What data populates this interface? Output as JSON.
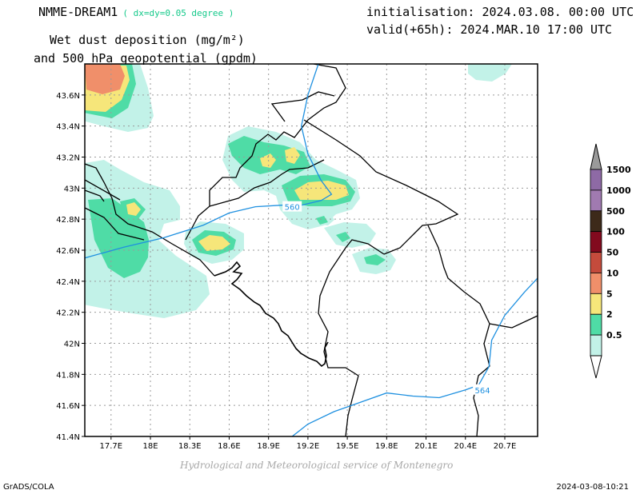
{
  "header": {
    "model": "NMME-DREAM1",
    "resolution": "( dx=dy=0.05 degree )",
    "product_line1": "Wet dust deposition (mg/m²)",
    "product_line2": "and 500 hPa geopotential (gpdm)",
    "init": "initialisation: 2024.03.08. 00:00 UTC",
    "valid": "valid(+65h): 2024.MAR.10 17:00 UTC"
  },
  "footer": {
    "credit": "Hydrological and Meteorological service of Montenegro",
    "software": "GrADS/COLA",
    "rendered": "2024-03-08-10:21"
  },
  "map": {
    "lon_range": [
      17.5,
      20.95
    ],
    "lat_range": [
      41.4,
      43.8
    ],
    "lon_ticks": [
      {
        "v": 17.7,
        "label": "17.7E"
      },
      {
        "v": 18.0,
        "label": "18E"
      },
      {
        "v": 18.3,
        "label": "18.3E"
      },
      {
        "v": 18.6,
        "label": "18.6E"
      },
      {
        "v": 18.9,
        "label": "18.9E"
      },
      {
        "v": 19.2,
        "label": "19.2E"
      },
      {
        "v": 19.5,
        "label": "19.5E"
      },
      {
        "v": 19.8,
        "label": "19.8E"
      },
      {
        "v": 20.1,
        "label": "20.1E"
      },
      {
        "v": 20.4,
        "label": "20.4E"
      },
      {
        "v": 20.7,
        "label": "20.7E"
      }
    ],
    "lat_ticks": [
      {
        "v": 41.4,
        "label": "41.4N"
      },
      {
        "v": 41.6,
        "label": "41.6N"
      },
      {
        "v": 41.8,
        "label": "41.8N"
      },
      {
        "v": 42.0,
        "label": "42N"
      },
      {
        "v": 42.2,
        "label": "42.2N"
      },
      {
        "v": 42.4,
        "label": "42.4N"
      },
      {
        "v": 42.6,
        "label": "42.6N"
      },
      {
        "v": 42.8,
        "label": "42.8N"
      },
      {
        "v": 43.0,
        "label": "43N"
      },
      {
        "v": 43.2,
        "label": "43.2N"
      },
      {
        "v": 43.4,
        "label": "43.4N"
      },
      {
        "v": 43.6,
        "label": "43.6N"
      }
    ],
    "gridlines": true,
    "contour_color": "#1e90e0",
    "contours": [
      {
        "label": "560",
        "label_at": [
          19.08,
          42.88
        ],
        "points": [
          [
            17.5,
            42.55
          ],
          [
            17.8,
            42.62
          ],
          [
            18.1,
            42.68
          ],
          [
            18.4,
            42.76
          ],
          [
            18.6,
            42.84
          ],
          [
            18.8,
            42.88
          ],
          [
            19.0,
            42.89
          ],
          [
            19.15,
            42.89
          ],
          [
            19.3,
            42.92
          ],
          [
            19.38,
            42.96
          ],
          [
            19.3,
            43.05
          ],
          [
            19.2,
            43.22
          ],
          [
            19.15,
            43.4
          ],
          [
            19.2,
            43.6
          ],
          [
            19.28,
            43.8
          ]
        ]
      },
      {
        "label": "564",
        "label_at": [
          20.53,
          41.7
        ],
        "points": [
          [
            19.08,
            41.4
          ],
          [
            19.2,
            41.48
          ],
          [
            19.4,
            41.56
          ],
          [
            19.6,
            41.62
          ],
          [
            19.8,
            41.68
          ],
          [
            20.0,
            41.66
          ],
          [
            20.2,
            41.65
          ],
          [
            20.4,
            41.7
          ],
          [
            20.5,
            41.73
          ],
          [
            20.58,
            41.85
          ],
          [
            20.6,
            42.02
          ],
          [
            20.7,
            42.18
          ],
          [
            20.85,
            42.33
          ],
          [
            20.95,
            42.42
          ]
        ]
      }
    ],
    "legend": {
      "entries": [
        {
          "label": "1500",
          "color": "#8e6aa5"
        },
        {
          "label": "1000",
          "color": "#a07ab0"
        },
        {
          "label": "500",
          "color": "#3d2a1a"
        },
        {
          "label": "100",
          "color": "#820a1e"
        },
        {
          "label": "50",
          "color": "#c44b3c"
        },
        {
          "label": "10",
          "color": "#f08f6a"
        },
        {
          "label": "5",
          "color": "#f6e67a"
        },
        {
          "label": "2",
          "color": "#4fdca6"
        },
        {
          "label": "0.5",
          "color": "#c2f2e8"
        }
      ],
      "cap_color": "#9a9a9a"
    }
  }
}
